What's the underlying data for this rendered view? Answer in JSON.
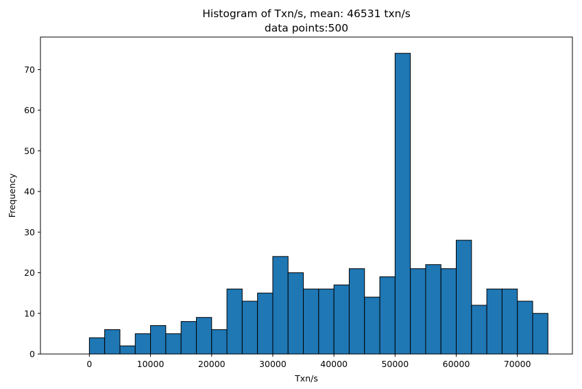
{
  "chart_data": {
    "type": "bar",
    "title": "Histogram of Txn/s, mean: 46531 txn/s",
    "subtitle": "data points:500",
    "xlabel": "Txn/s",
    "ylabel": "Frequency",
    "bin_edges": [
      0,
      2500,
      5000,
      7500,
      10000,
      12500,
      15000,
      17500,
      20000,
      22500,
      25000,
      27500,
      30000,
      32500,
      35000,
      37500,
      40000,
      42500,
      45000,
      47500,
      50000,
      52500,
      55000,
      57500,
      60000,
      62500,
      65000,
      67500,
      70000,
      72500,
      75000
    ],
    "values": [
      4,
      6,
      2,
      5,
      7,
      5,
      8,
      9,
      6,
      16,
      13,
      15,
      24,
      20,
      16,
      16,
      17,
      21,
      14,
      19,
      74,
      21,
      22,
      21,
      28,
      12,
      16,
      16,
      13,
      10
    ],
    "xlim": [
      -8000,
      79000
    ],
    "ylim": [
      0,
      78
    ],
    "xticks": [
      0,
      10000,
      20000,
      30000,
      40000,
      50000,
      60000,
      70000
    ],
    "xtick_labels": [
      "0",
      "10000",
      "20000",
      "30000",
      "40000",
      "50000",
      "60000",
      "70000"
    ],
    "yticks": [
      0,
      10,
      20,
      30,
      40,
      50,
      60,
      70
    ],
    "ytick_labels": [
      "0",
      "10",
      "20",
      "30",
      "40",
      "50",
      "60",
      "70"
    ],
    "bar_color": "#1f77b4",
    "edge_color": "#000000",
    "grid": false,
    "legend": "none"
  }
}
